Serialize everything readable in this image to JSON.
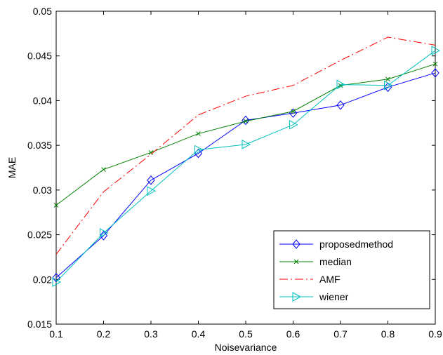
{
  "chart_data": {
    "type": "line",
    "xlabel": "Noisevariance",
    "ylabel": "MAE",
    "xlim": [
      0.1,
      0.9
    ],
    "ylim": [
      0.015,
      0.05
    ],
    "x_ticks": [
      0.1,
      0.2,
      0.3,
      0.4,
      0.5,
      0.6,
      0.7,
      0.8,
      0.9
    ],
    "x_tick_labels": [
      "0.1",
      "0.2",
      "0.3",
      "0.4",
      "0.5",
      "0.6",
      "0.7",
      "0.8",
      "0.9"
    ],
    "y_ticks": [
      0.015,
      0.02,
      0.025,
      0.03,
      0.035,
      0.04,
      0.045,
      0.05
    ],
    "y_tick_labels": [
      "0.015",
      "0.02",
      "0.025",
      "0.03",
      "0.035",
      "0.04",
      "0.045",
      "0.05"
    ],
    "grid": false,
    "legend_position": "bottom-right",
    "x": [
      0.1,
      0.2,
      0.3,
      0.4,
      0.5,
      0.6,
      0.7,
      0.8,
      0.9
    ],
    "series": [
      {
        "name": "proposedmethod",
        "color": "#0000ff",
        "marker": "diamond",
        "dash": "solid",
        "values": [
          0.0202,
          0.0249,
          0.0311,
          0.0341,
          0.0378,
          0.0386,
          0.0395,
          0.0415,
          0.0431
        ]
      },
      {
        "name": "median",
        "color": "#008000",
        "marker": "x",
        "dash": "solid",
        "values": [
          0.0283,
          0.0323,
          0.0342,
          0.0363,
          0.0377,
          0.0388,
          0.0417,
          0.0424,
          0.0441
        ]
      },
      {
        "name": "AMF",
        "color": "#ff0000",
        "marker": "none",
        "dash": "dashdot",
        "values": [
          0.0228,
          0.0298,
          0.034,
          0.0384,
          0.0405,
          0.0417,
          0.0445,
          0.0471,
          0.0462
        ]
      },
      {
        "name": "wiener",
        "color": "#00bfbf",
        "marker": "triangle-right",
        "dash": "solid",
        "values": [
          0.0197,
          0.0252,
          0.0299,
          0.0345,
          0.0351,
          0.0373,
          0.0418,
          0.0417,
          0.0456
        ]
      }
    ]
  }
}
